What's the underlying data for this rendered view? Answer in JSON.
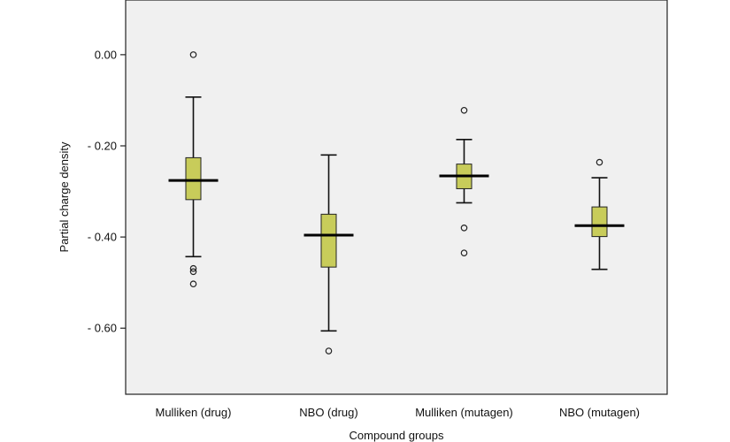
{
  "chart_data": {
    "type": "box",
    "title": "",
    "xlabel": "Compound groups",
    "ylabel": "Partial charge density",
    "ylim": [
      -0.745,
      0.12
    ],
    "yticks": [
      0.0,
      -0.2,
      -0.4,
      -0.6
    ],
    "ytick_labels": [
      "0.00",
      "- 0.20",
      "- 0.40",
      "- 0.60"
    ],
    "categories": [
      "Mulliken (drug)",
      "NBO (drug)",
      "Mulliken (mutagen)",
      "NBO (mutagen)"
    ],
    "boxes": [
      {
        "category": "Mulliken (drug)",
        "whisker_low": -0.443,
        "q1": -0.318,
        "median": -0.276,
        "q3": -0.226,
        "whisker_high": -0.093,
        "outliers": [
          0.0,
          -0.469,
          -0.476,
          -0.503
        ]
      },
      {
        "category": "NBO (drug)",
        "whisker_low": -0.606,
        "q1": -0.466,
        "median": -0.396,
        "q3": -0.35,
        "whisker_high": -0.22,
        "outliers": [
          -0.65
        ]
      },
      {
        "category": "Mulliken (mutagen)",
        "whisker_low": -0.325,
        "q1": -0.294,
        "median": -0.266,
        "q3": -0.24,
        "whisker_high": -0.186,
        "outliers": [
          -0.122,
          -0.38,
          -0.435
        ]
      },
      {
        "category": "NBO (mutagen)",
        "whisker_low": -0.471,
        "q1": -0.399,
        "median": -0.375,
        "q3": -0.334,
        "whisker_high": -0.27,
        "outliers": [
          -0.236
        ]
      }
    ],
    "box_color": "#c8cc5a",
    "plot_background": "#f0f0f0",
    "page_background": "#ffffff",
    "grid": false,
    "legend": "none"
  }
}
